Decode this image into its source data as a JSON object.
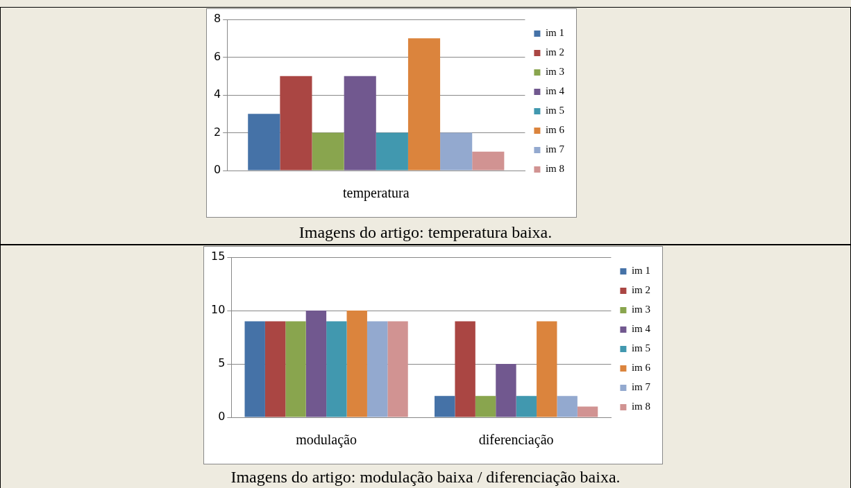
{
  "chart_data": [
    {
      "type": "bar",
      "categories": [
        "temperatura"
      ],
      "series": [
        {
          "name": "im 1",
          "color": "#4572a7",
          "values": [
            3
          ]
        },
        {
          "name": "im 2",
          "color": "#aa4643",
          "values": [
            5
          ]
        },
        {
          "name": "im 3",
          "color": "#89a54e",
          "values": [
            2
          ]
        },
        {
          "name": "im 4",
          "color": "#71588f",
          "values": [
            5
          ]
        },
        {
          "name": "im 5",
          "color": "#4198af",
          "values": [
            2
          ]
        },
        {
          "name": "im 6",
          "color": "#db843d",
          "values": [
            7
          ]
        },
        {
          "name": "im 7",
          "color": "#93a9cf",
          "values": [
            2
          ]
        },
        {
          "name": "im 8",
          "color": "#d19392",
          "values": [
            1
          ]
        }
      ],
      "ylim": [
        0,
        8
      ],
      "yticks": [
        0,
        2,
        4,
        6,
        8
      ],
      "grid": "y",
      "legend": "right",
      "annotations": [
        "Imagens do artigo: temperatura baixa."
      ]
    },
    {
      "type": "bar",
      "categories": [
        "modulação",
        "diferenciação"
      ],
      "series": [
        {
          "name": "im 1",
          "color": "#4572a7",
          "values": [
            9,
            2
          ]
        },
        {
          "name": "im 2",
          "color": "#aa4643",
          "values": [
            9,
            9
          ]
        },
        {
          "name": "im 3",
          "color": "#89a54e",
          "values": [
            9,
            2
          ]
        },
        {
          "name": "im 4",
          "color": "#71588f",
          "values": [
            10,
            5
          ]
        },
        {
          "name": "im 5",
          "color": "#4198af",
          "values": [
            9,
            2
          ]
        },
        {
          "name": "im 6",
          "color": "#db843d",
          "values": [
            10,
            9
          ]
        },
        {
          "name": "im 7",
          "color": "#93a9cf",
          "values": [
            9,
            2
          ]
        },
        {
          "name": "im 8",
          "color": "#d19392",
          "values": [
            9,
            1
          ]
        }
      ],
      "ylim": [
        0,
        15
      ],
      "yticks": [
        0,
        5,
        10,
        15
      ],
      "grid": "y",
      "legend": "right",
      "annotations": [
        "Imagens do artigo: modulação baixa / diferenciação baixa."
      ]
    }
  ]
}
